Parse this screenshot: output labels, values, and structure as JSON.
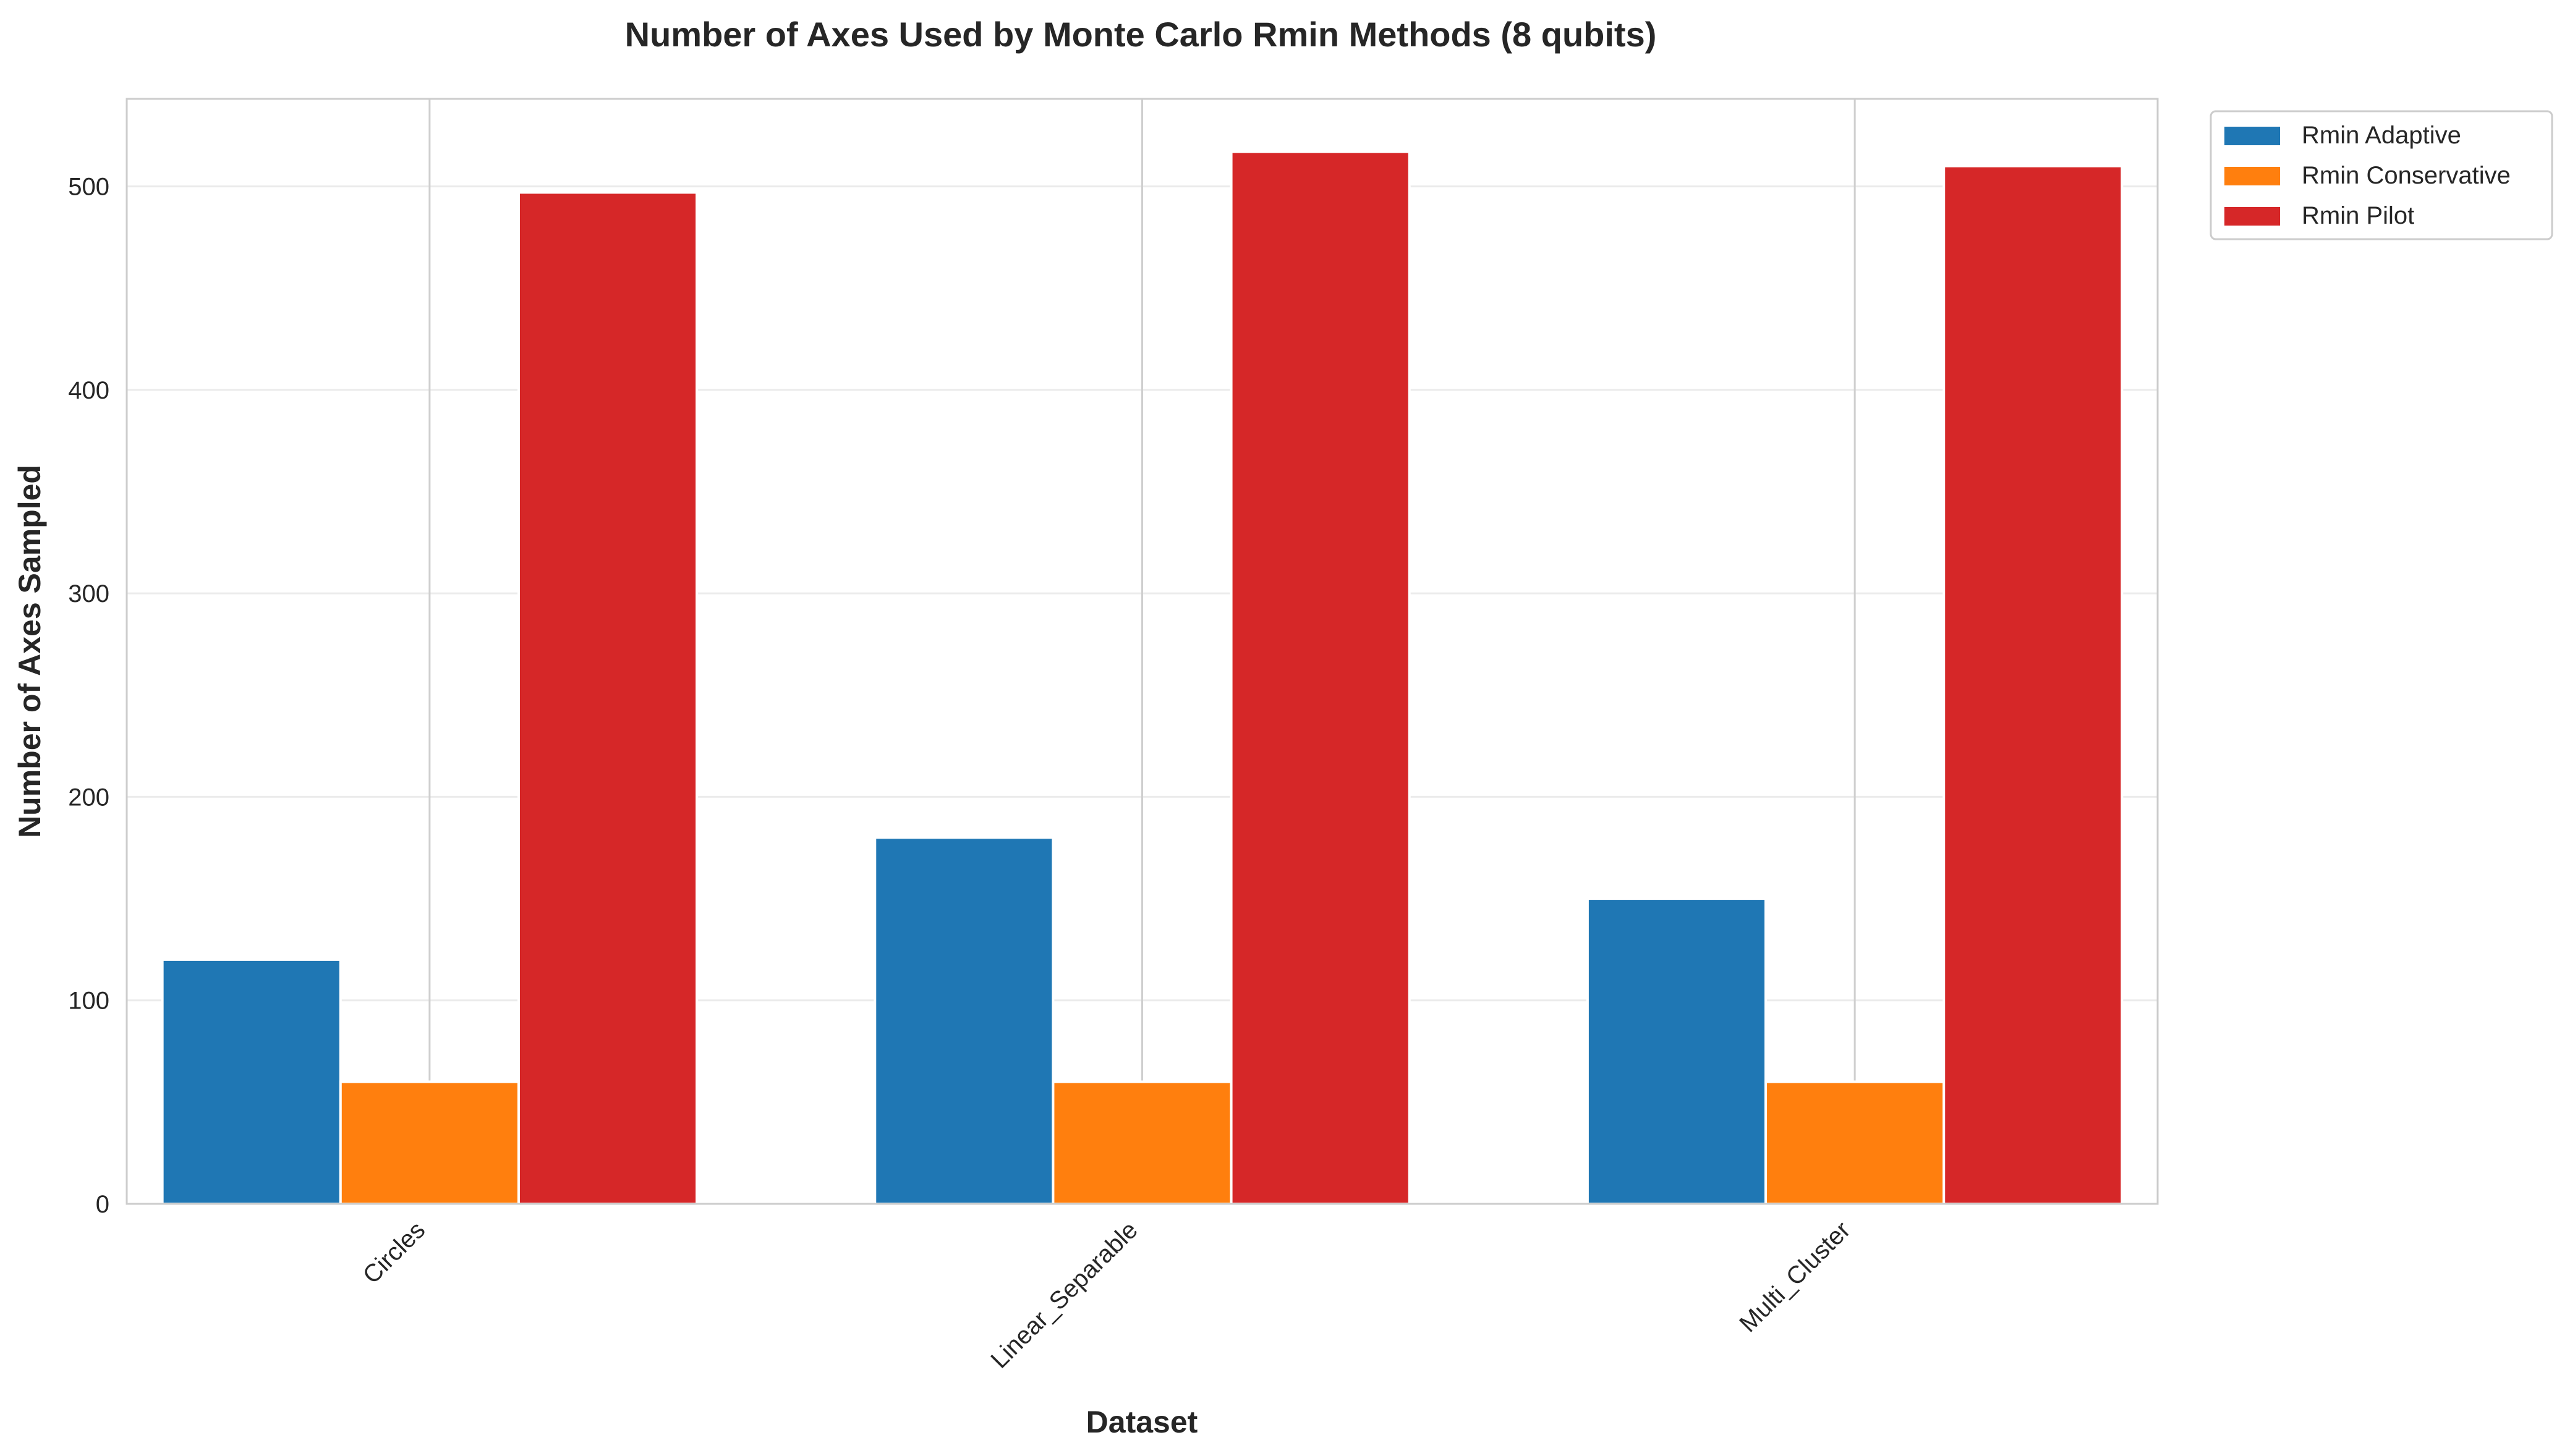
{
  "chart_data": {
    "type": "bar",
    "title": "Number of Axes Used by Monte Carlo Rmin Methods (8 qubits)",
    "xlabel": "Dataset",
    "ylabel": "Number of Axes Sampled",
    "categories": [
      "Circles",
      "Linear_Separable",
      "Multi_Cluster"
    ],
    "series": [
      {
        "name": "Rmin Adaptive",
        "color": "#1f77b4",
        "values": [
          120,
          180,
          150
        ]
      },
      {
        "name": "Rmin Conservative",
        "color": "#ff7f0e",
        "values": [
          60,
          60,
          60
        ]
      },
      {
        "name": "Rmin Pilot",
        "color": "#d62728",
        "values": [
          497,
          517,
          510
        ]
      }
    ],
    "ylim": [
      0,
      543
    ],
    "yticks": [
      0,
      100,
      200,
      300,
      400,
      500
    ],
    "grid": true,
    "legend_position": "outside-top-right",
    "x_tick_rotation": "45 degrees"
  }
}
